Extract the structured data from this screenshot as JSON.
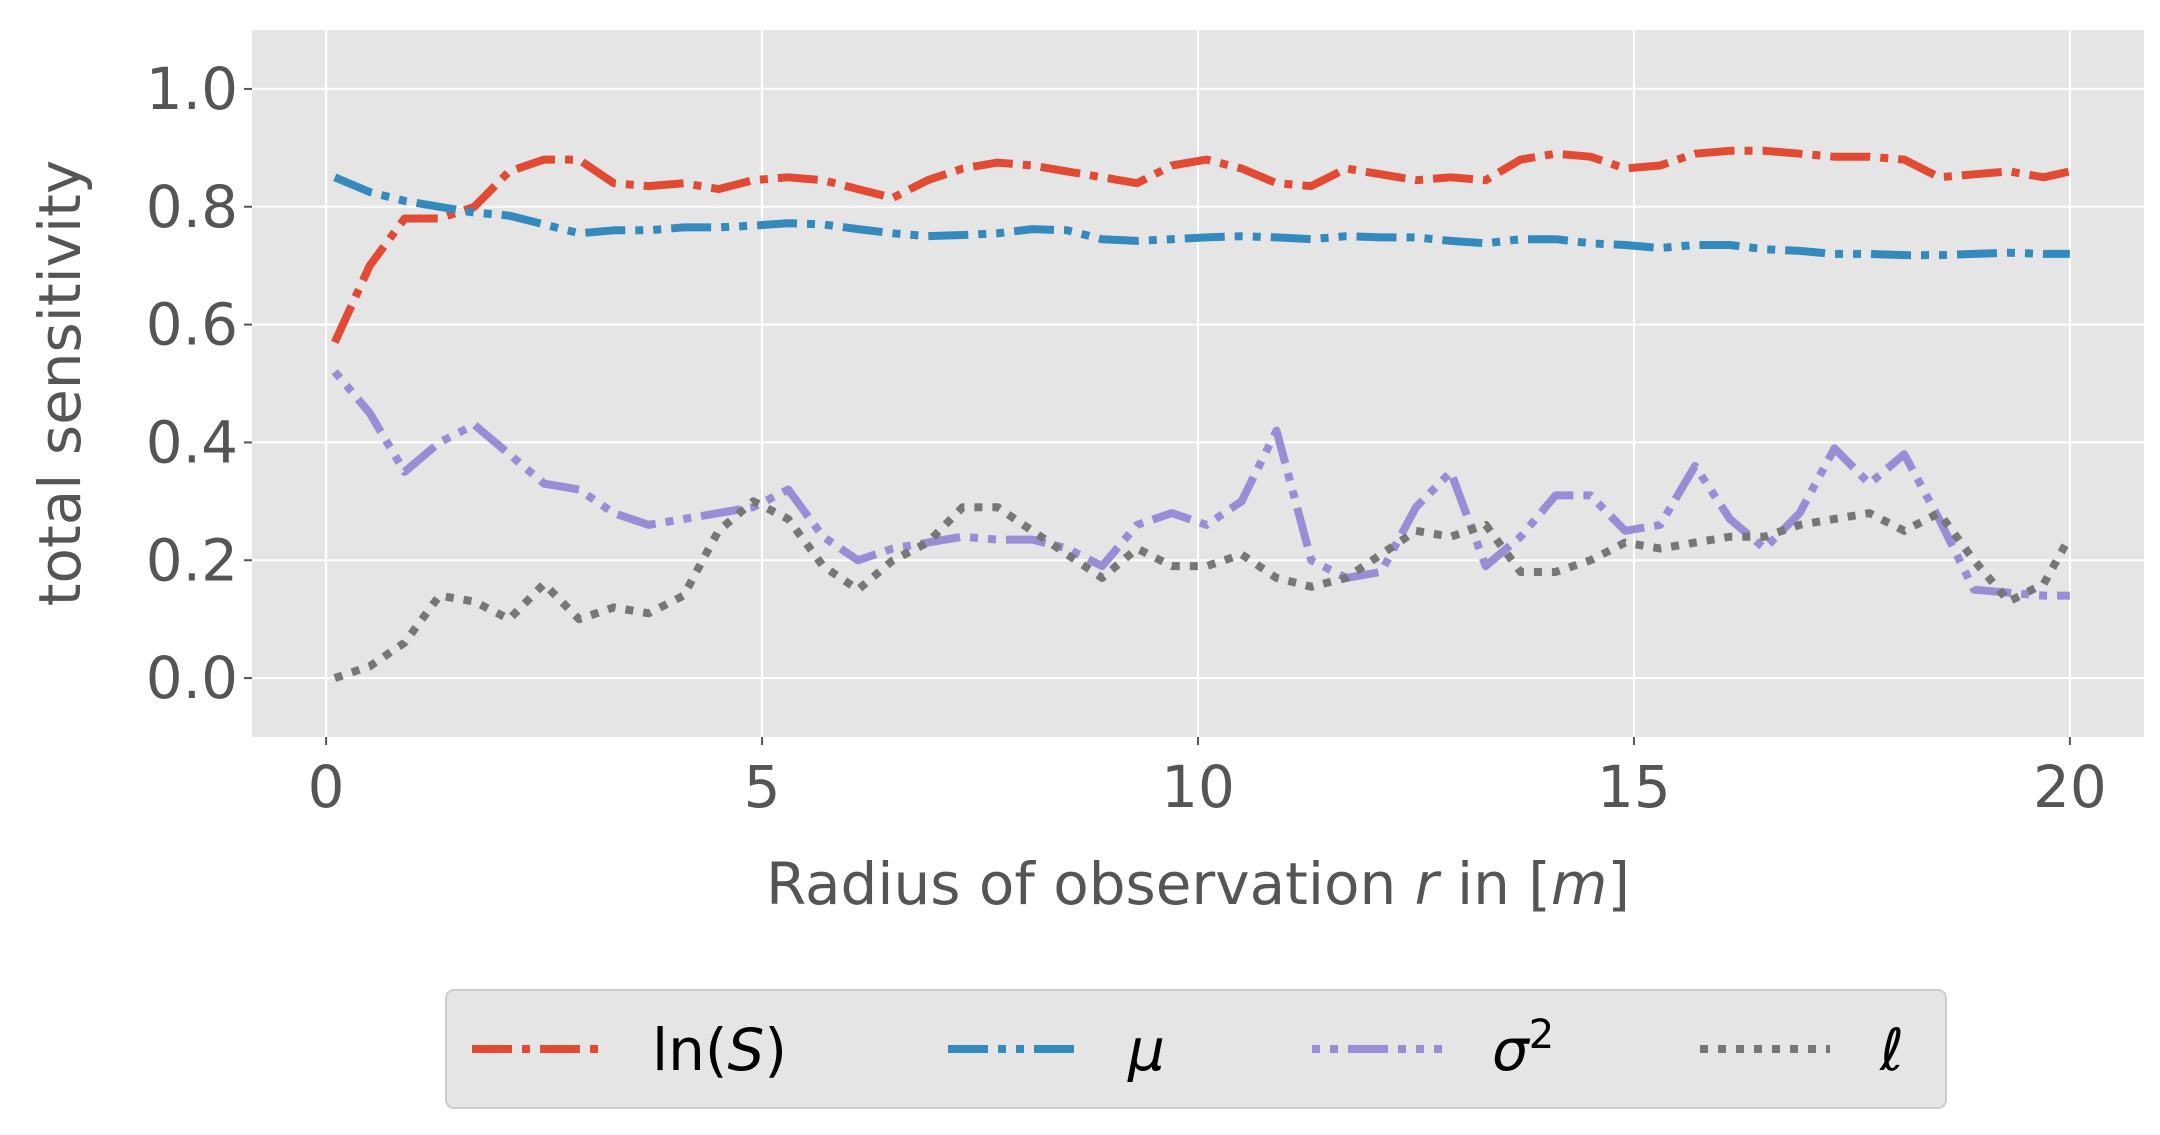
{
  "chart_data": {
    "type": "line",
    "xlabel": "Radius of observation r in [m]",
    "xlabel_parts": {
      "pre": "Radius of observation ",
      "r": "r",
      "mid": " in [",
      "m": "m",
      "post": "]"
    },
    "ylabel": "total sensitivity",
    "xlim": [
      -0.85,
      20.85
    ],
    "ylim": [
      -0.1,
      1.1
    ],
    "x_ticks": [
      0,
      5,
      10,
      15,
      20
    ],
    "x_tick_labels": [
      "0",
      "5",
      "10",
      "15",
      "20"
    ],
    "y_ticks": [
      0.0,
      0.2,
      0.4,
      0.6,
      0.8,
      1.0
    ],
    "y_tick_labels": [
      "0.0",
      "0.2",
      "0.4",
      "0.6",
      "0.8",
      "1.0"
    ],
    "grid": true,
    "legend_position": "bottom-center",
    "series": [
      {
        "name": "ln(S)",
        "legend_parts": {
          "pre": "ln(",
          "ital": "S",
          "post": ")"
        },
        "color": "#E24A33",
        "style": "dashdot",
        "x": [
          0.1,
          0.5,
          0.9,
          1.3,
          1.7,
          2.1,
          2.5,
          2.9,
          3.3,
          3.7,
          4.1,
          4.5,
          4.9,
          5.3,
          5.7,
          6.1,
          6.5,
          6.9,
          7.3,
          7.7,
          8.1,
          8.5,
          8.9,
          9.3,
          9.7,
          10.1,
          10.5,
          10.9,
          11.3,
          11.7,
          12.1,
          12.5,
          12.9,
          13.3,
          13.7,
          14.1,
          14.5,
          14.9,
          15.3,
          15.7,
          16.1,
          16.5,
          16.9,
          17.3,
          17.7,
          18.1,
          18.5,
          18.9,
          19.3,
          19.7,
          20.0
        ],
        "y": [
          0.57,
          0.7,
          0.78,
          0.78,
          0.8,
          0.86,
          0.88,
          0.88,
          0.84,
          0.835,
          0.84,
          0.83,
          0.845,
          0.85,
          0.845,
          0.83,
          0.815,
          0.845,
          0.865,
          0.875,
          0.87,
          0.86,
          0.85,
          0.84,
          0.87,
          0.88,
          0.865,
          0.84,
          0.835,
          0.865,
          0.855,
          0.845,
          0.85,
          0.845,
          0.88,
          0.89,
          0.885,
          0.865,
          0.87,
          0.89,
          0.895,
          0.895,
          0.89,
          0.885,
          0.885,
          0.88,
          0.85,
          0.855,
          0.86,
          0.85,
          0.86
        ]
      },
      {
        "name": "μ",
        "legend_parts": {
          "pre": "",
          "ital": "μ",
          "post": ""
        },
        "color": "#348ABD",
        "style": "dashdotdot",
        "x": [
          0.1,
          0.5,
          0.9,
          1.3,
          1.7,
          2.1,
          2.5,
          2.9,
          3.3,
          3.7,
          4.1,
          4.5,
          4.9,
          5.3,
          5.7,
          6.1,
          6.5,
          6.9,
          7.3,
          7.7,
          8.1,
          8.5,
          8.9,
          9.3,
          9.7,
          10.1,
          10.5,
          10.9,
          11.3,
          11.7,
          12.1,
          12.5,
          12.9,
          13.3,
          13.7,
          14.1,
          14.5,
          14.9,
          15.3,
          15.7,
          16.1,
          16.5,
          16.9,
          17.3,
          17.7,
          18.1,
          18.5,
          18.9,
          19.3,
          19.7,
          20.0
        ],
        "y": [
          0.85,
          0.825,
          0.81,
          0.8,
          0.79,
          0.785,
          0.77,
          0.755,
          0.76,
          0.76,
          0.765,
          0.765,
          0.768,
          0.772,
          0.77,
          0.762,
          0.755,
          0.75,
          0.752,
          0.755,
          0.762,
          0.76,
          0.745,
          0.742,
          0.745,
          0.748,
          0.75,
          0.748,
          0.745,
          0.75,
          0.748,
          0.748,
          0.742,
          0.738,
          0.745,
          0.745,
          0.738,
          0.735,
          0.73,
          0.735,
          0.735,
          0.728,
          0.725,
          0.72,
          0.72,
          0.718,
          0.718,
          0.72,
          0.722,
          0.72,
          0.72
        ]
      },
      {
        "name": "σ²",
        "legend_parts": {
          "pre": "",
          "ital": "σ",
          "post": "2"
        },
        "color": "#988ED5",
        "style": "dotted-dash",
        "x": [
          0.1,
          0.5,
          0.9,
          1.3,
          1.7,
          2.1,
          2.5,
          2.9,
          3.3,
          3.7,
          4.1,
          4.5,
          4.9,
          5.3,
          5.7,
          6.1,
          6.5,
          6.9,
          7.3,
          7.7,
          8.1,
          8.5,
          8.9,
          9.3,
          9.7,
          10.1,
          10.5,
          10.9,
          11.3,
          11.7,
          12.1,
          12.5,
          12.9,
          13.3,
          13.7,
          14.1,
          14.5,
          14.9,
          15.3,
          15.7,
          16.1,
          16.5,
          16.9,
          17.3,
          17.7,
          18.1,
          18.5,
          18.9,
          19.3,
          19.7,
          20.0
        ],
        "y": [
          0.52,
          0.45,
          0.35,
          0.4,
          0.43,
          0.38,
          0.33,
          0.32,
          0.28,
          0.26,
          0.27,
          0.28,
          0.29,
          0.32,
          0.24,
          0.2,
          0.22,
          0.23,
          0.24,
          0.235,
          0.235,
          0.22,
          0.19,
          0.26,
          0.28,
          0.26,
          0.3,
          0.42,
          0.2,
          0.17,
          0.18,
          0.29,
          0.35,
          0.19,
          0.24,
          0.31,
          0.31,
          0.25,
          0.26,
          0.36,
          0.27,
          0.22,
          0.28,
          0.39,
          0.33,
          0.38,
          0.27,
          0.15,
          0.145,
          0.14,
          0.14
        ]
      },
      {
        "name": "ℓ",
        "legend_parts": {
          "pre": "",
          "ital": "ℓ",
          "post": ""
        },
        "color": "#777777",
        "style": "dotted",
        "x": [
          0.1,
          0.5,
          0.9,
          1.3,
          1.7,
          2.1,
          2.5,
          2.9,
          3.3,
          3.7,
          4.1,
          4.5,
          4.9,
          5.3,
          5.7,
          6.1,
          6.5,
          6.9,
          7.3,
          7.7,
          8.1,
          8.5,
          8.9,
          9.3,
          9.7,
          10.1,
          10.5,
          10.9,
          11.3,
          11.7,
          12.1,
          12.5,
          12.9,
          13.3,
          13.7,
          14.1,
          14.5,
          14.9,
          15.3,
          15.7,
          16.1,
          16.5,
          16.9,
          17.3,
          17.7,
          18.1,
          18.5,
          18.9,
          19.3,
          19.7,
          20.0
        ],
        "y": [
          0.0,
          0.02,
          0.06,
          0.14,
          0.13,
          0.1,
          0.16,
          0.1,
          0.12,
          0.11,
          0.14,
          0.25,
          0.3,
          0.27,
          0.19,
          0.15,
          0.2,
          0.23,
          0.29,
          0.29,
          0.25,
          0.21,
          0.17,
          0.22,
          0.19,
          0.19,
          0.21,
          0.17,
          0.155,
          0.17,
          0.21,
          0.25,
          0.24,
          0.26,
          0.18,
          0.18,
          0.2,
          0.23,
          0.22,
          0.23,
          0.24,
          0.24,
          0.26,
          0.27,
          0.28,
          0.25,
          0.28,
          0.2,
          0.13,
          0.16,
          0.24
        ]
      }
    ]
  }
}
